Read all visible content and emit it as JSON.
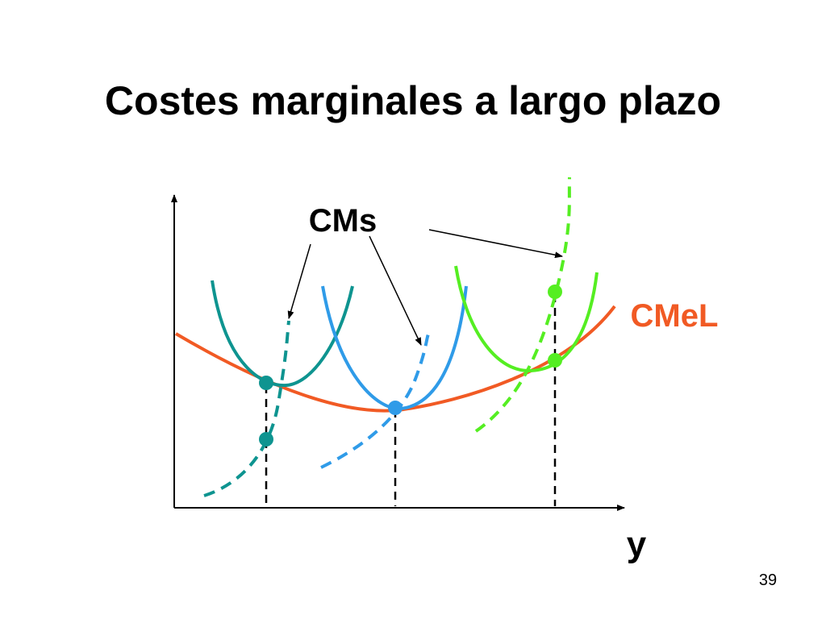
{
  "title": "Costes marginales a largo plazo",
  "labels": {
    "short_run_marginal_cost": "CMs",
    "long_run_average_cost": "CMeL",
    "x_axis": "y"
  },
  "page_number": "39"
}
